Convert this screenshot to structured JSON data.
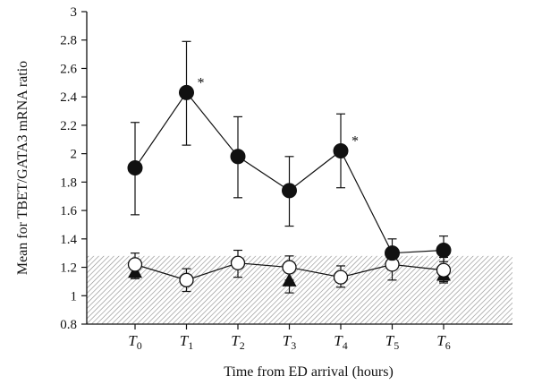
{
  "chart_data": {
    "type": "line",
    "xlabel": "Time from ED arrival (hours)",
    "ylabel": "Mean for TBET/GATA3 mRNA ratio",
    "ylim": [
      0.8,
      3
    ],
    "yticks": [
      0.8,
      1,
      1.2,
      1.4,
      1.6,
      1.8,
      2,
      2.2,
      2.4,
      2.6,
      2.8,
      3
    ],
    "ytick_labels": [
      "0.8",
      "1",
      "1.2",
      "1.4",
      "1.6",
      "1.8",
      "2",
      "2.2",
      "2.4",
      "2.6",
      "2.8",
      "3"
    ],
    "categories": [
      {
        "main": "T",
        "sub": "0"
      },
      {
        "main": "T",
        "sub": "1"
      },
      {
        "main": "T",
        "sub": "2"
      },
      {
        "main": "T",
        "sub": "3"
      },
      {
        "main": "T",
        "sub": "4"
      },
      {
        "main": "T",
        "sub": "5"
      },
      {
        "main": "T",
        "sub": "6"
      }
    ],
    "reference_band": {
      "ymin": 0.8,
      "ymax": 1.28
    },
    "series": [
      {
        "marker": "filled-circle",
        "color": "#111111",
        "values": [
          1.9,
          2.43,
          1.98,
          1.74,
          2.02,
          1.3,
          1.32
        ],
        "err_low": [
          1.57,
          2.06,
          1.69,
          1.49,
          1.76,
          1.21,
          1.24
        ],
        "err_high": [
          2.22,
          2.79,
          2.26,
          1.98,
          2.28,
          1.4,
          1.42
        ],
        "significant": [
          false,
          true,
          false,
          false,
          true,
          false,
          false
        ]
      },
      {
        "marker": "open-circle",
        "color": "#111111",
        "values": [
          1.22,
          1.11,
          1.23,
          1.2,
          1.13,
          1.22,
          1.18
        ],
        "err_low": [
          1.13,
          1.03,
          1.13,
          1.11,
          1.06,
          1.11,
          1.09
        ],
        "err_high": [
          1.3,
          1.19,
          1.32,
          1.28,
          1.21,
          1.32,
          1.27
        ]
      },
      {
        "marker": "filled-triangle",
        "color": "#111111",
        "show_at": [
          0,
          3,
          6
        ],
        "values": [
          1.17,
          null,
          null,
          1.11,
          null,
          null,
          1.15
        ],
        "err_low": [
          1.12,
          null,
          null,
          1.02,
          null,
          null,
          1.1
        ],
        "err_high": [
          1.22,
          null,
          null,
          1.2,
          null,
          null,
          1.2
        ]
      }
    ],
    "significance_label": "*",
    "grid": false
  }
}
